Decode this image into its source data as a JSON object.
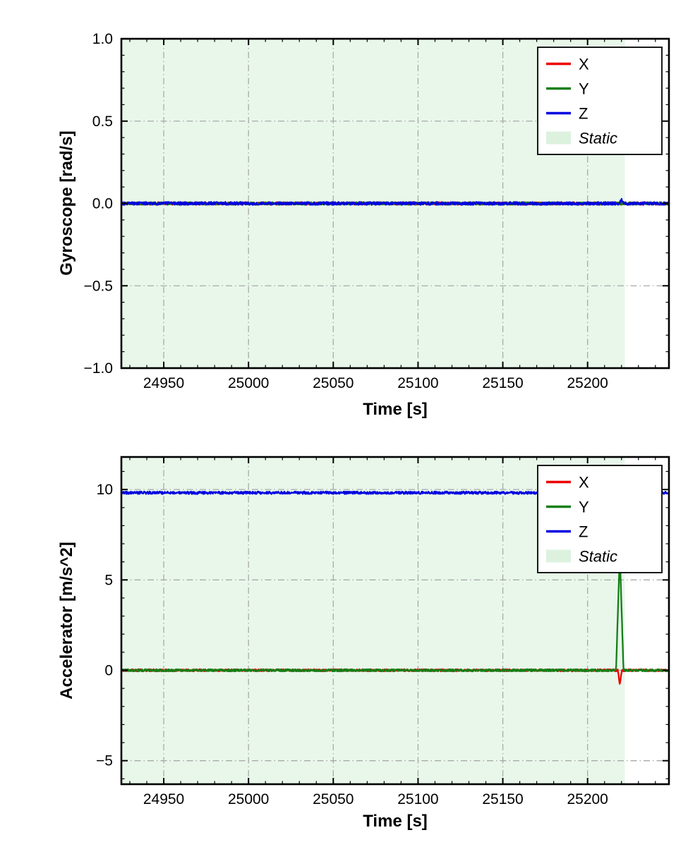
{
  "figure": {
    "background": "#ffffff",
    "axis_color": "#000000",
    "grid_color": "#a9a9a9",
    "static_fill": "#e8f7ea",
    "static_legend_fill": "#ddf1df"
  },
  "chart_data": [
    {
      "type": "line",
      "title": "",
      "xlabel": "Time [s]",
      "ylabel": "Gyroscope [rad/s]",
      "xlim": [
        24925,
        25248
      ],
      "ylim": [
        -1.0,
        1.0
      ],
      "xticks": [
        24950,
        25000,
        25050,
        25100,
        25150,
        25200
      ],
      "xtick_labels": [
        "24950",
        "25000",
        "25050",
        "25100",
        "25150",
        "25200"
      ],
      "yticks": [
        1.0,
        0.5,
        0.0,
        -0.5,
        -1.0
      ],
      "ytick_labels": [
        "1.0",
        "0.5",
        "0.0",
        "−0.5",
        "−1.0"
      ],
      "x_minor_step": 10,
      "y_minor_step": 0.1,
      "grid": true,
      "grid_linestyle": "dashdot",
      "legend_position": "upper right",
      "legend_entries": [
        "X",
        "Y",
        "Z",
        "Static"
      ],
      "static_region": {
        "label": "Static",
        "x_start": 24925,
        "x_end": 25222
      },
      "series": [
        {
          "name": "X",
          "color": "#ee0000",
          "baseline": 0.0,
          "noise_amplitude": 0.008
        },
        {
          "name": "Y",
          "color": "#157f17",
          "baseline": 0.0,
          "noise_amplitude": 0.008
        },
        {
          "name": "Z",
          "color": "#0000e0",
          "baseline": 0.0,
          "noise_amplitude": 0.009,
          "spike": {
            "x": 25220,
            "peak": 0.025,
            "half_width": 1.5
          }
        }
      ]
    },
    {
      "type": "line",
      "title": "",
      "xlabel": "Time [s]",
      "ylabel": "Accelerator [m/s^2]",
      "xlim": [
        24925,
        25248
      ],
      "ylim": [
        -6.3,
        11.8
      ],
      "xticks": [
        24950,
        25000,
        25050,
        25100,
        25150,
        25200
      ],
      "xtick_labels": [
        "24950",
        "25000",
        "25050",
        "25100",
        "25150",
        "25200"
      ],
      "yticks": [
        10,
        5,
        0,
        -5
      ],
      "ytick_labels": [
        "10",
        "5",
        "0",
        "−5"
      ],
      "x_minor_step": 10,
      "y_minor_step": 1,
      "grid": true,
      "grid_linestyle": "dashdot",
      "legend_position": "upper right",
      "legend_entries": [
        "X",
        "Y",
        "Z",
        "Static"
      ],
      "static_region": {
        "label": "Static",
        "x_start": 24925,
        "x_end": 25222
      },
      "series": [
        {
          "name": "X",
          "color": "#ee0000",
          "baseline": 0.0,
          "noise_amplitude": 0.06,
          "spike": {
            "x": 25219,
            "peak": -0.75,
            "half_width": 1.2
          }
        },
        {
          "name": "Y",
          "color": "#157f17",
          "baseline": 0.0,
          "noise_amplitude": 0.06,
          "spike": {
            "x": 25219,
            "peak": 6.5,
            "half_width": 2.2
          }
        },
        {
          "name": "Z",
          "color": "#0000e0",
          "baseline": 9.82,
          "noise_amplitude": 0.07
        }
      ]
    }
  ]
}
